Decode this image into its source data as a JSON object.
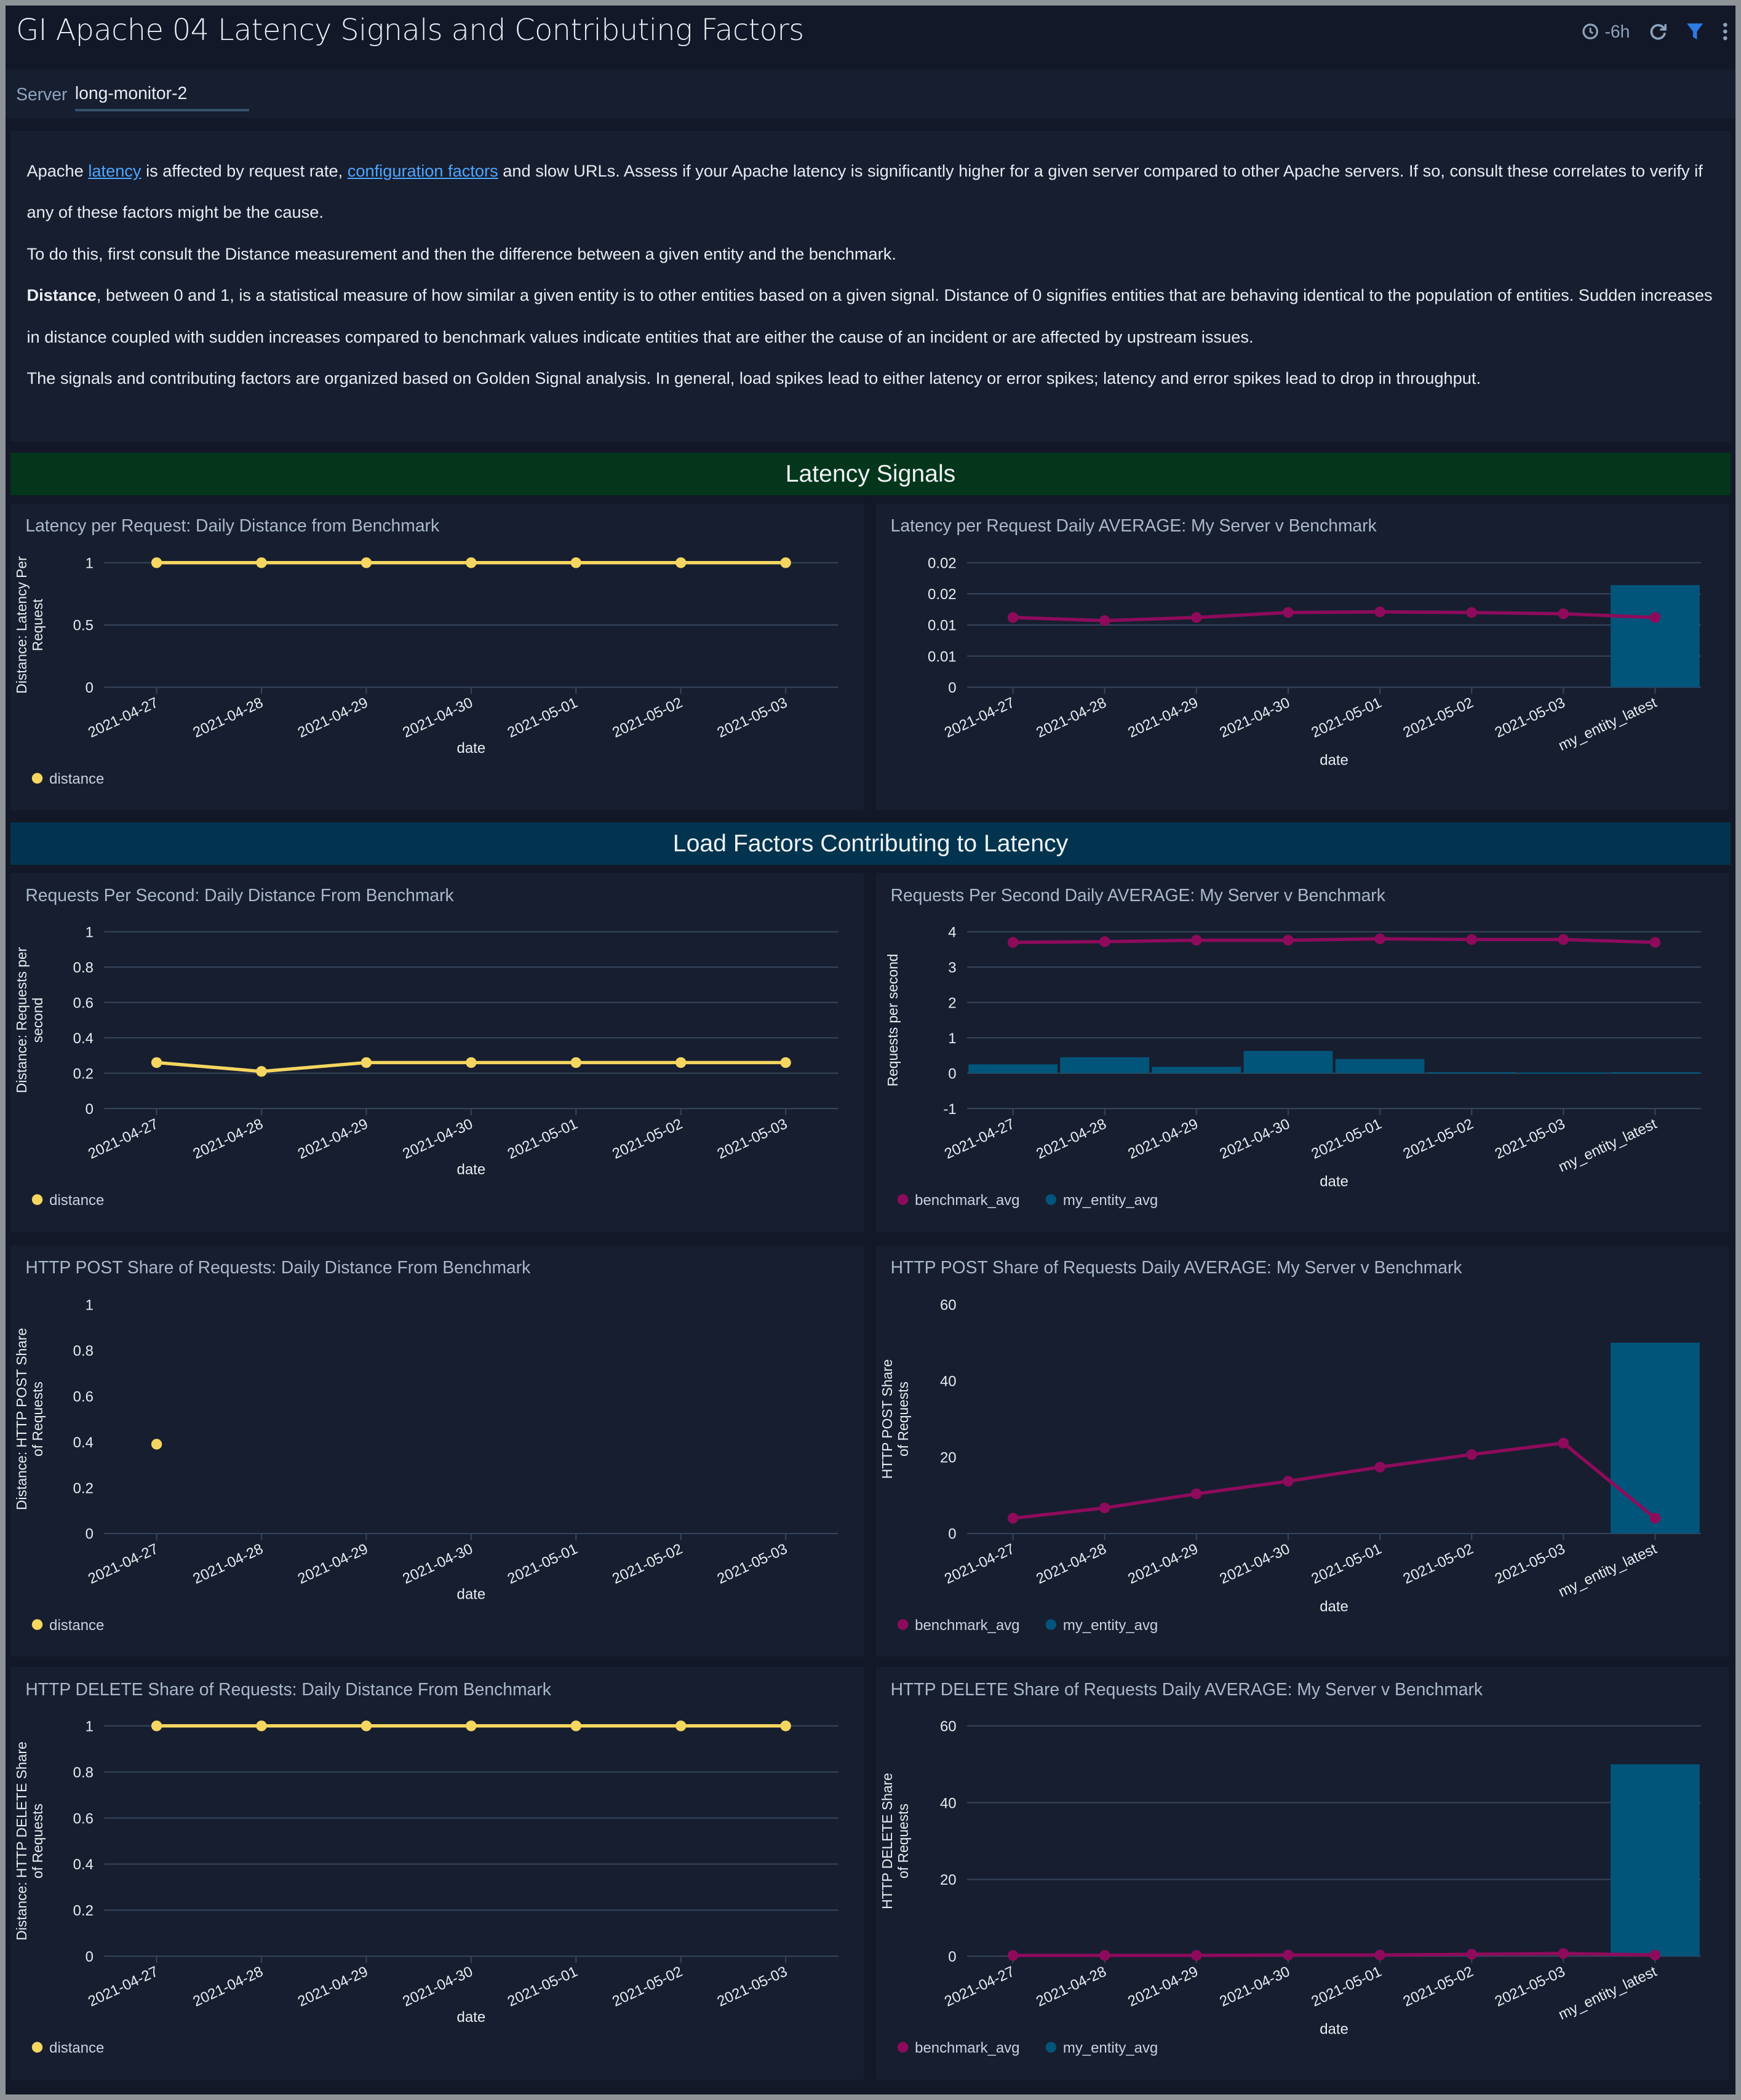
{
  "header": {
    "title": "GI Apache 04 Latency Signals and Contributing Factors",
    "time_range": "-6h",
    "icons": [
      "clock-icon",
      "refresh-icon",
      "filter-icon",
      "more-icon"
    ]
  },
  "filter": {
    "label": "Server",
    "value": "long-monitor-2"
  },
  "description": {
    "p1_pre": "Apache ",
    "p1_link1": "latency",
    "p1_mid": " is affected by request rate, ",
    "p1_link2": "configuration factors",
    "p1_post": " and slow URLs. Assess if your Apache latency is significantly higher for a given server compared to other Apache servers. If so, consult these correlates to verify if any of these factors might be the cause.",
    "p2": "To do this, first consult the Distance measurement and then the difference between a given entity and the benchmark.",
    "p3_bold": "Distance",
    "p3": ", between 0 and 1, is a statistical measure of how similar a given entity is to other entities based on a given signal. Distance of 0 signifies entities that are behaving identical to the population of entities. Sudden increases in distance coupled with sudden increases compared to benchmark values indicate entities that are either the cause of an incident or are affected by upstream issues.",
    "p4": "The signals and contributing factors are organized based on Golden Signal analysis. In general, load spikes lead to either latency or error spikes; latency and error spikes lead to drop in throughput."
  },
  "sections": {
    "latency": "Latency Signals",
    "load": "Load Factors Contributing to Latency"
  },
  "colors": {
    "distance": "#f5d660",
    "benchmark_avg": "#8e0b5c",
    "my_entity_avg": "#02557a",
    "latency_banner": "#03361a",
    "load_banner": "#03344f"
  },
  "chart_data": [
    {
      "type": "line",
      "title": "Latency per Request: Daily Distance from Benchmark",
      "xlabel": "date",
      "ylabel": "Distance: Latency Per Request",
      "categories": [
        "2021-04-27",
        "2021-04-28",
        "2021-04-29",
        "2021-04-30",
        "2021-05-01",
        "2021-05-02",
        "2021-05-03"
      ],
      "ylim": [
        0,
        1
      ],
      "yticks": [
        0,
        0.5,
        1
      ],
      "ytick_labels": [
        "0",
        "0.5",
        "1"
      ],
      "grid": true,
      "legend": "bottom-left",
      "series": [
        {
          "name": "distance",
          "kind": "line",
          "values": [
            1,
            1,
            1,
            1,
            1,
            1,
            1
          ]
        }
      ]
    },
    {
      "type": "bar+line",
      "title": "Latency per Request Daily AVERAGE: My Server v Benchmark",
      "xlabel": "date",
      "ylabel": "",
      "categories": [
        "2021-04-27",
        "2021-04-28",
        "2021-04-29",
        "2021-04-30",
        "2021-05-01",
        "2021-05-02",
        "2021-05-03",
        "my_entity_latest"
      ],
      "ylim": [
        0,
        0.02
      ],
      "yticks": [
        0,
        0.005,
        0.01,
        0.015,
        0.02
      ],
      "ytick_labels": [
        "0",
        "0.01",
        "0.01",
        "0.02",
        "0.02"
      ],
      "grid": true,
      "legend": "none",
      "series": [
        {
          "kind": "bar",
          "values": [
            null,
            null,
            null,
            null,
            null,
            null,
            null,
            0.0164
          ]
        },
        {
          "kind": "line",
          "values": [
            0.0112,
            0.0107,
            0.0112,
            0.012,
            0.0121,
            0.012,
            0.0118,
            0.0112
          ]
        }
      ]
    },
    {
      "type": "line",
      "title": "Requests Per Second: Daily Distance From Benchmark",
      "xlabel": "date",
      "ylabel": "Distance: Requests per second",
      "categories": [
        "2021-04-27",
        "2021-04-28",
        "2021-04-29",
        "2021-04-30",
        "2021-05-01",
        "2021-05-02",
        "2021-05-03"
      ],
      "ylim": [
        0,
        1
      ],
      "yticks": [
        0,
        0.2,
        0.4,
        0.6,
        0.8,
        1
      ],
      "ytick_labels": [
        "0",
        "0.2",
        "0.4",
        "0.6",
        "0.8",
        "1"
      ],
      "grid": true,
      "legend": "bottom-left",
      "series": [
        {
          "name": "distance",
          "kind": "line",
          "values": [
            0.26,
            0.21,
            0.26,
            0.26,
            0.26,
            0.26,
            0.26
          ]
        }
      ]
    },
    {
      "type": "bar+line",
      "title": "Requests Per Second Daily AVERAGE: My Server v Benchmark",
      "xlabel": "date",
      "ylabel": "Requests per second",
      "categories": [
        "2021-04-27",
        "2021-04-28",
        "2021-04-29",
        "2021-04-30",
        "2021-05-01",
        "2021-05-02",
        "2021-05-03",
        "my_entity_latest"
      ],
      "ylim": [
        -1,
        4
      ],
      "yticks": [
        -1,
        0,
        1,
        2,
        3,
        4
      ],
      "ytick_labels": [
        "-1",
        "0",
        "1",
        "2",
        "3",
        "4"
      ],
      "grid": true,
      "legend": "bottom-left",
      "series": [
        {
          "name": "my_entity_avg",
          "kind": "bar",
          "values": [
            0.25,
            0.45,
            0.18,
            0.63,
            0.4,
            0.03,
            0.02,
            0.03
          ]
        },
        {
          "name": "benchmark_avg",
          "kind": "line",
          "values": [
            3.7,
            3.72,
            3.76,
            3.76,
            3.8,
            3.78,
            3.78,
            3.7
          ]
        }
      ],
      "legend_order": [
        "benchmark_avg",
        "my_entity_avg"
      ]
    },
    {
      "type": "line",
      "title": "HTTP POST Share of Requests: Daily Distance From Benchmark",
      "xlabel": "date",
      "ylabel": "Distance: HTTP POST Share of Requests",
      "categories": [
        "2021-04-27",
        "2021-04-28",
        "2021-04-29",
        "2021-04-30",
        "2021-05-01",
        "2021-05-02",
        "2021-05-03"
      ],
      "ylim": [
        0,
        1
      ],
      "yticks": [
        0,
        0.2,
        0.4,
        0.6,
        0.8,
        1
      ],
      "ytick_labels": [
        "0",
        "0.2",
        "0.4",
        "0.6",
        "0.8",
        "1"
      ],
      "grid": false,
      "legend": "bottom-left",
      "series": [
        {
          "name": "distance",
          "kind": "line",
          "values": [
            0.39,
            null,
            null,
            null,
            null,
            null,
            null
          ]
        }
      ]
    },
    {
      "type": "bar+line",
      "title": "HTTP POST Share of Requests Daily AVERAGE: My Server v Benchmark",
      "xlabel": "date",
      "ylabel": "HTTP POST Share of Requests",
      "categories": [
        "2021-04-27",
        "2021-04-28",
        "2021-04-29",
        "2021-04-30",
        "2021-05-01",
        "2021-05-02",
        "2021-05-03",
        "my_entity_latest"
      ],
      "ylim": [
        0,
        60
      ],
      "yticks": [
        0,
        20,
        40,
        60
      ],
      "ytick_labels": [
        "0",
        "20",
        "40",
        "60"
      ],
      "grid": false,
      "legend": "bottom-left",
      "series": [
        {
          "name": "my_entity_avg",
          "kind": "bar",
          "values": [
            null,
            null,
            null,
            null,
            null,
            null,
            null,
            50
          ]
        },
        {
          "name": "benchmark_avg",
          "kind": "line",
          "values": [
            4,
            6.7,
            10.4,
            13.7,
            17.4,
            20.7,
            23.7,
            4
          ]
        }
      ],
      "legend_order": [
        "benchmark_avg",
        "my_entity_avg"
      ]
    },
    {
      "type": "line",
      "title": "HTTP DELETE Share of Requests: Daily Distance From Benchmark",
      "xlabel": "date",
      "ylabel": "Distance: HTTP DELETE Share of Requests",
      "categories": [
        "2021-04-27",
        "2021-04-28",
        "2021-04-29",
        "2021-04-30",
        "2021-05-01",
        "2021-05-02",
        "2021-05-03"
      ],
      "ylim": [
        0,
        1
      ],
      "yticks": [
        0,
        0.2,
        0.4,
        0.6,
        0.8,
        1
      ],
      "ytick_labels": [
        "0",
        "0.2",
        "0.4",
        "0.6",
        "0.8",
        "1"
      ],
      "grid": true,
      "legend": "bottom-left",
      "series": [
        {
          "name": "distance",
          "kind": "line",
          "values": [
            1,
            1,
            1,
            1,
            1,
            1,
            1
          ]
        }
      ]
    },
    {
      "type": "bar+line",
      "title": "HTTP DELETE Share of Requests Daily AVERAGE: My Server v Benchmark",
      "xlabel": "date",
      "ylabel": "HTTP DELETE Share of Requests",
      "categories": [
        "2021-04-27",
        "2021-04-28",
        "2021-04-29",
        "2021-04-30",
        "2021-05-01",
        "2021-05-02",
        "2021-05-03",
        "my_entity_latest"
      ],
      "ylim": [
        0,
        60
      ],
      "yticks": [
        0,
        20,
        40,
        60
      ],
      "ytick_labels": [
        "0",
        "20",
        "40",
        "60"
      ],
      "grid": true,
      "legend": "bottom-left",
      "series": [
        {
          "name": "my_entity_avg",
          "kind": "bar",
          "values": [
            null,
            null,
            null,
            null,
            null,
            null,
            null,
            50
          ]
        },
        {
          "name": "benchmark_avg",
          "kind": "line",
          "values": [
            0.2,
            0.2,
            0.2,
            0.3,
            0.3,
            0.5,
            0.7,
            0.3
          ]
        }
      ],
      "legend_order": [
        "benchmark_avg",
        "my_entity_avg"
      ]
    }
  ]
}
